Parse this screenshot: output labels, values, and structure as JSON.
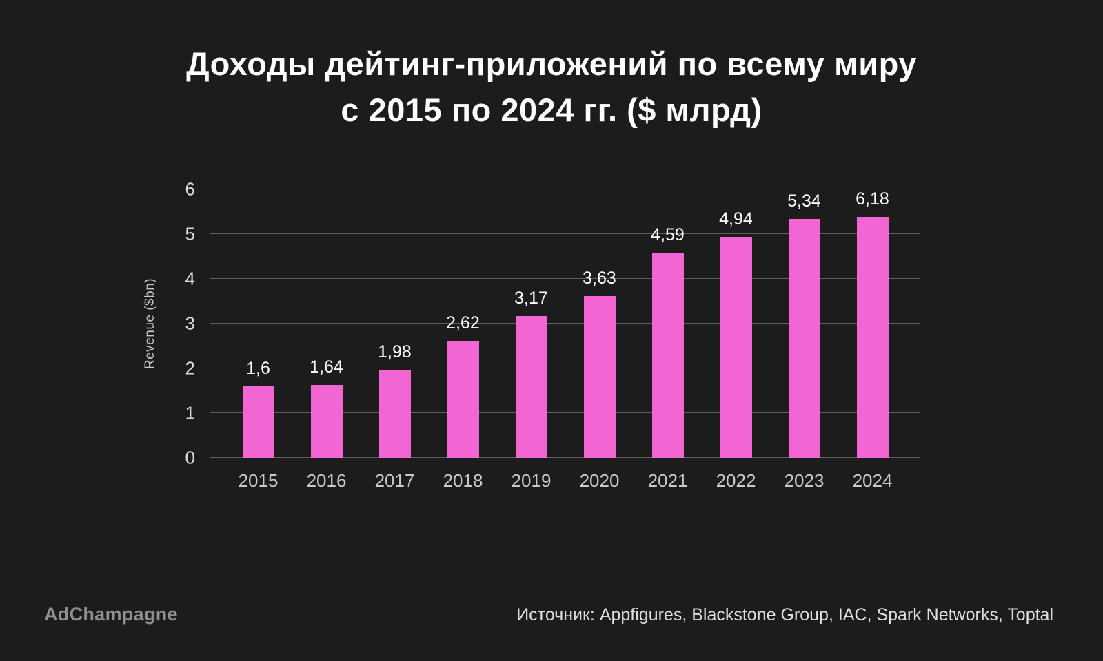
{
  "title": {
    "line1": "Доходы дейтинг-приложений по всему миру",
    "line2": "с 2015 по 2024 гг. ($ млрд)"
  },
  "chart_data": {
    "type": "bar",
    "title": "Доходы дейтинг-приложений по всему миру с 2015 по 2024 гг. ($ млрд)",
    "categories": [
      "2015",
      "2016",
      "2017",
      "2018",
      "2019",
      "2020",
      "2021",
      "2022",
      "2023",
      "2024"
    ],
    "values": [
      1.6,
      1.64,
      1.98,
      2.62,
      3.17,
      3.63,
      4.59,
      4.94,
      5.34,
      6.18
    ],
    "value_labels": [
      "1,6",
      "1,64",
      "1,98",
      "2,62",
      "3,17",
      "3,63",
      "4,59",
      "4,94",
      "5,34",
      "6,18"
    ],
    "xlabel": "",
    "ylabel": "Revenue ($bn)",
    "ylim": [
      0,
      6
    ],
    "ytick_step": 1,
    "grid": true,
    "legend": "none",
    "bar_color": "#f266d4",
    "background_color": "#1c1c1c"
  },
  "footer": {
    "brand": "AdChampagne",
    "source": "Источник: Appfigures, Blackstone Group, IAC, Spark Networks, Toptal"
  }
}
